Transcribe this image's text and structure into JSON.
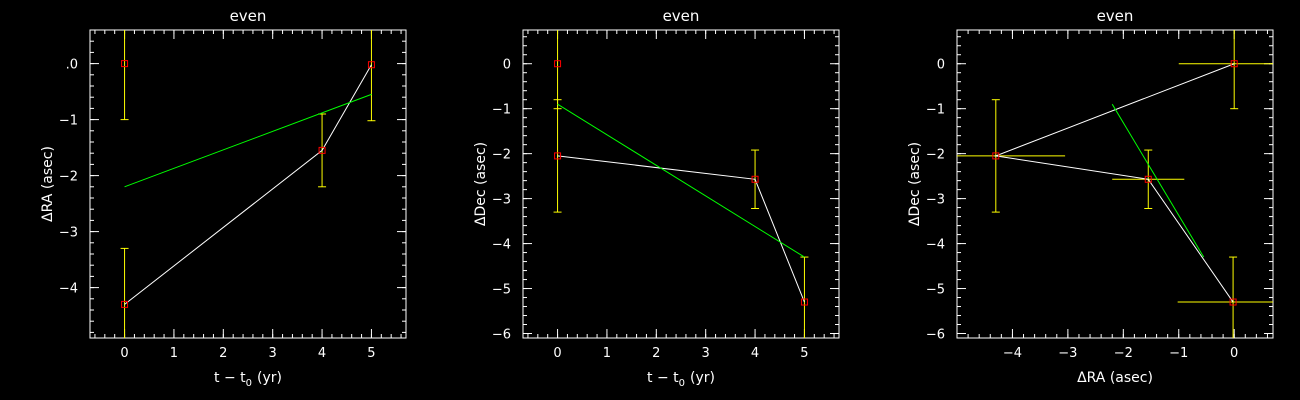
{
  "colors": {
    "background": "#000000",
    "axes": "#ffffff",
    "data_line": "#ffffff",
    "fit_line": "#00ff00",
    "error_bars": "#ffff00",
    "markers": "#ff0000"
  },
  "chart_data": [
    {
      "type": "line",
      "title": "even",
      "xlabel": "t − t",
      "xlabel_sub": "0",
      "xlabel_unit": "(yr)",
      "ylabel": "ΔRA (asec)",
      "xlim": [
        -0.7,
        5.7
      ],
      "ylim": [
        -4.9,
        0.6
      ],
      "xticks": [
        0,
        1,
        2,
        3,
        4,
        5
      ],
      "xtick_labels": [
        "0",
        "1",
        "2",
        "3",
        "4",
        "5"
      ],
      "yticks": [
        0,
        -1,
        -2,
        -3,
        -4
      ],
      "ytick_labels": [
        ".0",
        "−1",
        "−2",
        "−3",
        "−4"
      ],
      "series": [
        {
          "role": "observations",
          "points": [
            {
              "x": 0,
              "y": 0.0,
              "yerr": 1.0
            },
            {
              "x": 0,
              "y": -4.3,
              "yerr": 1.0
            },
            {
              "x": 4,
              "y": -1.55,
              "yerr": 0.65
            },
            {
              "x": 5,
              "y": -0.02,
              "yerr": 1.0
            }
          ]
        },
        {
          "role": "connecting",
          "x": [
            0,
            4,
            5
          ],
          "y": [
            -4.3,
            -1.55,
            -0.02
          ]
        },
        {
          "role": "fit",
          "x": [
            0,
            5
          ],
          "y": [
            -2.2,
            -0.55
          ]
        }
      ]
    },
    {
      "type": "line",
      "title": "even",
      "xlabel": "t − t",
      "xlabel_sub": "0",
      "xlabel_unit": "(yr)",
      "ylabel": "ΔDec (asec)",
      "xlim": [
        -0.7,
        5.7
      ],
      "ylim": [
        -6.1,
        0.75
      ],
      "xticks": [
        0,
        1,
        2,
        3,
        4,
        5
      ],
      "xtick_labels": [
        "0",
        "1",
        "2",
        "3",
        "4",
        "5"
      ],
      "yticks": [
        0,
        -1,
        -2,
        -3,
        -4,
        -5,
        -6
      ],
      "ytick_labels": [
        "0",
        "−1",
        "−2",
        "−3",
        "−4",
        "−5",
        "−6"
      ],
      "series": [
        {
          "role": "observations",
          "points": [
            {
              "x": 0,
              "y": 0.0,
              "yerr": 1.0
            },
            {
              "x": 0,
              "y": -2.05,
              "yerr": 1.25
            },
            {
              "x": 4,
              "y": -2.57,
              "yerr": 0.65
            },
            {
              "x": 5,
              "y": -5.3,
              "yerr": 1.0
            }
          ]
        },
        {
          "role": "connecting",
          "x": [
            0,
            4,
            5
          ],
          "y": [
            -2.05,
            -2.57,
            -5.3
          ]
        },
        {
          "role": "fit",
          "x": [
            0,
            5
          ],
          "y": [
            -0.9,
            -4.3
          ]
        }
      ]
    },
    {
      "type": "scatter",
      "title": "even",
      "xlabel": "ΔRA (asec)",
      "ylabel": "ΔDec (asec)",
      "xlim": [
        -5.0,
        0.7
      ],
      "ylim": [
        -6.1,
        0.75
      ],
      "xticks": [
        -4,
        -3,
        -2,
        -1,
        0
      ],
      "xtick_labels": [
        "−4",
        "−3",
        "−2",
        "−1",
        "0"
      ],
      "yticks": [
        0,
        -1,
        -2,
        -3,
        -4,
        -5,
        -6
      ],
      "ytick_labels": [
        "0",
        "−1",
        "−2",
        "−3",
        "−4",
        "−5",
        "−6"
      ],
      "series": [
        {
          "role": "observations",
          "points": [
            {
              "x": 0.0,
              "y": 0.0,
              "xerr": 1.0,
              "yerr": 1.0
            },
            {
              "x": -4.3,
              "y": -2.05,
              "xerr": 1.25,
              "yerr": 1.25
            },
            {
              "x": -1.55,
              "y": -2.57,
              "xerr": 0.65,
              "yerr": 0.65
            },
            {
              "x": -0.02,
              "y": -5.3,
              "xerr": 1.0,
              "yerr": 1.0
            }
          ]
        },
        {
          "role": "connecting",
          "x": [
            0.0,
            -4.3,
            -1.55,
            -0.02
          ],
          "y": [
            0.0,
            -2.05,
            -2.57,
            -5.3
          ]
        },
        {
          "role": "fit",
          "x": [
            -2.2,
            -0.55
          ],
          "y": [
            -0.9,
            -4.3
          ]
        }
      ]
    }
  ]
}
